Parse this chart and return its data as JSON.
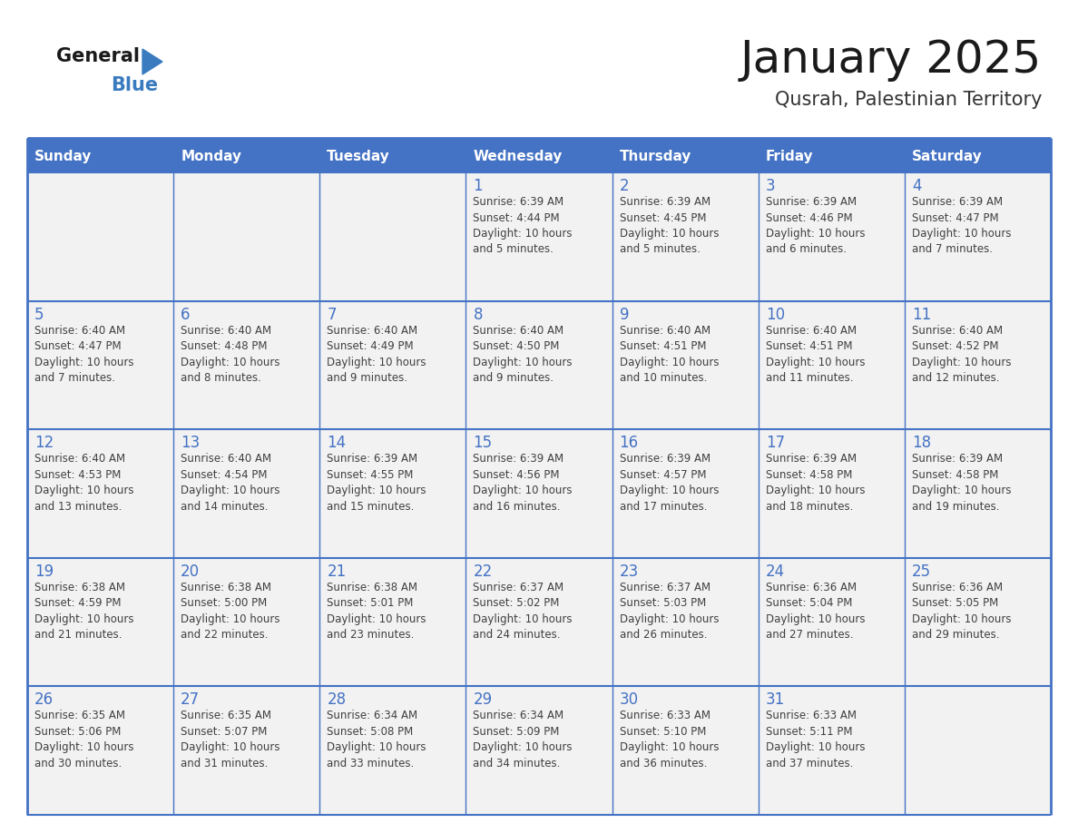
{
  "title": "January 2025",
  "subtitle": "Qusrah, Palestinian Territory",
  "days_of_week": [
    "Sunday",
    "Monday",
    "Tuesday",
    "Wednesday",
    "Thursday",
    "Friday",
    "Saturday"
  ],
  "header_bg": "#4472C4",
  "header_text": "#FFFFFF",
  "cell_bg": "#F2F2F2",
  "border_color": "#4472C4",
  "day_number_color": "#4472C4",
  "cell_text_color": "#404040",
  "title_color": "#1a1a1a",
  "subtitle_color": "#333333",
  "logo_general_color": "#1a1a1a",
  "logo_blue_color": "#3a7bbf",
  "calendar": [
    [
      {
        "day": "",
        "info": ""
      },
      {
        "day": "",
        "info": ""
      },
      {
        "day": "",
        "info": ""
      },
      {
        "day": "1",
        "info": "Sunrise: 6:39 AM\nSunset: 4:44 PM\nDaylight: 10 hours\nand 5 minutes."
      },
      {
        "day": "2",
        "info": "Sunrise: 6:39 AM\nSunset: 4:45 PM\nDaylight: 10 hours\nand 5 minutes."
      },
      {
        "day": "3",
        "info": "Sunrise: 6:39 AM\nSunset: 4:46 PM\nDaylight: 10 hours\nand 6 minutes."
      },
      {
        "day": "4",
        "info": "Sunrise: 6:39 AM\nSunset: 4:47 PM\nDaylight: 10 hours\nand 7 minutes."
      }
    ],
    [
      {
        "day": "5",
        "info": "Sunrise: 6:40 AM\nSunset: 4:47 PM\nDaylight: 10 hours\nand 7 minutes."
      },
      {
        "day": "6",
        "info": "Sunrise: 6:40 AM\nSunset: 4:48 PM\nDaylight: 10 hours\nand 8 minutes."
      },
      {
        "day": "7",
        "info": "Sunrise: 6:40 AM\nSunset: 4:49 PM\nDaylight: 10 hours\nand 9 minutes."
      },
      {
        "day": "8",
        "info": "Sunrise: 6:40 AM\nSunset: 4:50 PM\nDaylight: 10 hours\nand 9 minutes."
      },
      {
        "day": "9",
        "info": "Sunrise: 6:40 AM\nSunset: 4:51 PM\nDaylight: 10 hours\nand 10 minutes."
      },
      {
        "day": "10",
        "info": "Sunrise: 6:40 AM\nSunset: 4:51 PM\nDaylight: 10 hours\nand 11 minutes."
      },
      {
        "day": "11",
        "info": "Sunrise: 6:40 AM\nSunset: 4:52 PM\nDaylight: 10 hours\nand 12 minutes."
      }
    ],
    [
      {
        "day": "12",
        "info": "Sunrise: 6:40 AM\nSunset: 4:53 PM\nDaylight: 10 hours\nand 13 minutes."
      },
      {
        "day": "13",
        "info": "Sunrise: 6:40 AM\nSunset: 4:54 PM\nDaylight: 10 hours\nand 14 minutes."
      },
      {
        "day": "14",
        "info": "Sunrise: 6:39 AM\nSunset: 4:55 PM\nDaylight: 10 hours\nand 15 minutes."
      },
      {
        "day": "15",
        "info": "Sunrise: 6:39 AM\nSunset: 4:56 PM\nDaylight: 10 hours\nand 16 minutes."
      },
      {
        "day": "16",
        "info": "Sunrise: 6:39 AM\nSunset: 4:57 PM\nDaylight: 10 hours\nand 17 minutes."
      },
      {
        "day": "17",
        "info": "Sunrise: 6:39 AM\nSunset: 4:58 PM\nDaylight: 10 hours\nand 18 minutes."
      },
      {
        "day": "18",
        "info": "Sunrise: 6:39 AM\nSunset: 4:58 PM\nDaylight: 10 hours\nand 19 minutes."
      }
    ],
    [
      {
        "day": "19",
        "info": "Sunrise: 6:38 AM\nSunset: 4:59 PM\nDaylight: 10 hours\nand 21 minutes."
      },
      {
        "day": "20",
        "info": "Sunrise: 6:38 AM\nSunset: 5:00 PM\nDaylight: 10 hours\nand 22 minutes."
      },
      {
        "day": "21",
        "info": "Sunrise: 6:38 AM\nSunset: 5:01 PM\nDaylight: 10 hours\nand 23 minutes."
      },
      {
        "day": "22",
        "info": "Sunrise: 6:37 AM\nSunset: 5:02 PM\nDaylight: 10 hours\nand 24 minutes."
      },
      {
        "day": "23",
        "info": "Sunrise: 6:37 AM\nSunset: 5:03 PM\nDaylight: 10 hours\nand 26 minutes."
      },
      {
        "day": "24",
        "info": "Sunrise: 6:36 AM\nSunset: 5:04 PM\nDaylight: 10 hours\nand 27 minutes."
      },
      {
        "day": "25",
        "info": "Sunrise: 6:36 AM\nSunset: 5:05 PM\nDaylight: 10 hours\nand 29 minutes."
      }
    ],
    [
      {
        "day": "26",
        "info": "Sunrise: 6:35 AM\nSunset: 5:06 PM\nDaylight: 10 hours\nand 30 minutes."
      },
      {
        "day": "27",
        "info": "Sunrise: 6:35 AM\nSunset: 5:07 PM\nDaylight: 10 hours\nand 31 minutes."
      },
      {
        "day": "28",
        "info": "Sunrise: 6:34 AM\nSunset: 5:08 PM\nDaylight: 10 hours\nand 33 minutes."
      },
      {
        "day": "29",
        "info": "Sunrise: 6:34 AM\nSunset: 5:09 PM\nDaylight: 10 hours\nand 34 minutes."
      },
      {
        "day": "30",
        "info": "Sunrise: 6:33 AM\nSunset: 5:10 PM\nDaylight: 10 hours\nand 36 minutes."
      },
      {
        "day": "31",
        "info": "Sunrise: 6:33 AM\nSunset: 5:11 PM\nDaylight: 10 hours\nand 37 minutes."
      },
      {
        "day": "",
        "info": ""
      }
    ]
  ]
}
